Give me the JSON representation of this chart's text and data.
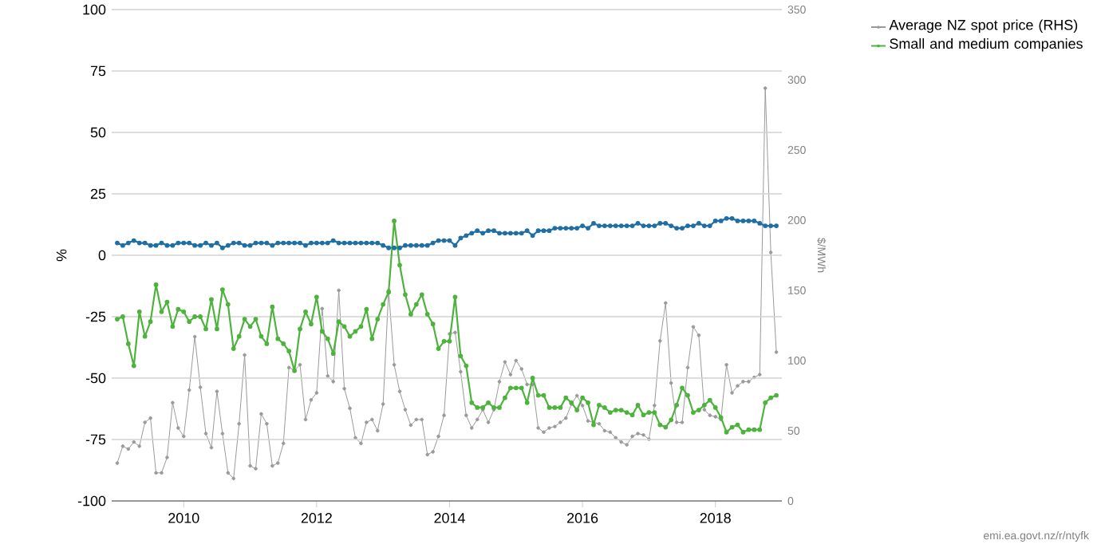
{
  "chart_data": {
    "type": "line",
    "ylabel": "%",
    "y2label": "$/MWh",
    "annotations": [
      "emi.ea.govt.nz/r/ntyfk"
    ],
    "x": [
      "2009-01",
      "2009-02",
      "2009-03",
      "2009-04",
      "2009-05",
      "2009-06",
      "2009-07",
      "2009-08",
      "2009-09",
      "2009-10",
      "2009-11",
      "2009-12",
      "2010-01",
      "2010-02",
      "2010-03",
      "2010-04",
      "2010-05",
      "2010-06",
      "2010-07",
      "2010-08",
      "2010-09",
      "2010-10",
      "2010-11",
      "2010-12",
      "2011-01",
      "2011-02",
      "2011-03",
      "2011-04",
      "2011-05",
      "2011-06",
      "2011-07",
      "2011-08",
      "2011-09",
      "2011-10",
      "2011-11",
      "2011-12",
      "2012-01",
      "2012-02",
      "2012-03",
      "2012-04",
      "2012-05",
      "2012-06",
      "2012-07",
      "2012-08",
      "2012-09",
      "2012-10",
      "2012-11",
      "2012-12",
      "2013-01",
      "2013-02",
      "2013-03",
      "2013-04",
      "2013-05",
      "2013-06",
      "2013-07",
      "2013-08",
      "2013-09",
      "2013-10",
      "2013-11",
      "2013-12",
      "2014-01",
      "2014-02",
      "2014-03",
      "2014-04",
      "2014-05",
      "2014-06",
      "2014-07",
      "2014-08",
      "2014-09",
      "2014-10",
      "2014-11",
      "2014-12",
      "2015-01",
      "2015-02",
      "2015-03",
      "2015-04",
      "2015-05",
      "2015-06",
      "2015-07",
      "2015-08",
      "2015-09",
      "2015-10",
      "2015-11",
      "2015-12",
      "2016-01",
      "2016-02",
      "2016-03",
      "2016-04",
      "2016-05",
      "2016-06",
      "2016-07",
      "2016-08",
      "2016-09",
      "2016-10",
      "2016-11",
      "2016-12",
      "2017-01",
      "2017-02",
      "2017-03",
      "2017-04",
      "2017-05",
      "2017-06",
      "2017-07",
      "2017-08",
      "2017-09",
      "2017-10",
      "2017-11",
      "2017-12",
      "2018-01",
      "2018-02",
      "2018-03",
      "2018-04",
      "2018-05",
      "2018-06",
      "2018-07",
      "2018-08",
      "2018-09",
      "2018-10",
      "2018-11",
      "2018-12"
    ],
    "series": [
      {
        "name": "Average NZ spot price (RHS)",
        "axis": "y2",
        "color": "#9a9a9a",
        "values": [
          27,
          39,
          37,
          42,
          39,
          56,
          59,
          20,
          20,
          31,
          70,
          52,
          46,
          79,
          117,
          81,
          48,
          38,
          78,
          48,
          20,
          16,
          55,
          104,
          25,
          23,
          62,
          55,
          25,
          27,
          41,
          95,
          93,
          97,
          58,
          72,
          77,
          137,
          89,
          85,
          150,
          80,
          66,
          45,
          41,
          56,
          58,
          50,
          69,
          150,
          97,
          78,
          65,
          54,
          58,
          58,
          33,
          35,
          46,
          61,
          119,
          120,
          92,
          61,
          52,
          58,
          65,
          56,
          65,
          85,
          99,
          90,
          100,
          94,
          83,
          83,
          52,
          49,
          52,
          53,
          56,
          59,
          69,
          75,
          68,
          57,
          56,
          55,
          50,
          49,
          45,
          42,
          40,
          46,
          48,
          47,
          44,
          68,
          114,
          141,
          84,
          56,
          56,
          95,
          124,
          118,
          65,
          61,
          60,
          58,
          97,
          77,
          82,
          85,
          85,
          88,
          90,
          294,
          177,
          106
        ]
      },
      {
        "color": "#1f6fa5",
        "values": [
          5,
          4,
          5,
          6,
          5,
          5,
          4,
          4,
          5,
          4,
          4,
          5,
          5,
          5,
          4,
          4,
          5,
          4,
          5,
          3,
          4,
          5,
          5,
          4,
          4,
          5,
          5,
          5,
          4,
          5,
          5,
          5,
          5,
          5,
          4,
          5,
          5,
          5,
          5,
          6,
          5,
          5,
          5,
          5,
          5,
          5,
          5,
          5,
          4,
          3,
          3,
          3,
          4,
          4,
          4,
          4,
          4,
          5,
          6,
          6,
          6,
          4,
          7,
          8,
          9,
          10,
          9,
          10,
          10,
          9,
          9,
          9,
          9,
          9,
          10,
          8,
          10,
          10,
          10,
          11,
          11,
          11,
          11,
          11,
          12,
          11,
          13,
          12,
          12,
          12,
          12,
          12,
          12,
          12,
          13,
          12,
          12,
          12,
          13,
          13,
          12,
          11,
          11,
          12,
          12,
          13,
          12,
          12,
          14,
          14,
          15,
          15,
          14,
          14,
          14,
          14,
          13,
          12,
          12,
          12
        ]
      },
      {
        "name": "Small and medium companies",
        "color": "#4db33d",
        "values": [
          -26,
          -25,
          -36,
          -45,
          -23,
          -33,
          -27,
          -12,
          -23,
          -19,
          -29,
          -22,
          -23,
          -27,
          -25,
          -25,
          -30,
          -18,
          -30,
          -14,
          -20,
          -38,
          -33,
          -26,
          -29,
          -26,
          -33,
          -36,
          -21,
          -34,
          -36,
          -39,
          -47,
          -30,
          -23,
          -28,
          -17,
          -31,
          -34,
          -40,
          -27,
          -29,
          -33,
          -31,
          -29,
          -22,
          -34,
          -26,
          -20,
          -15,
          14,
          -4,
          -16,
          -24,
          -20,
          -16,
          -24,
          -28,
          -38,
          -35,
          -35,
          -17,
          -41,
          -45,
          -60,
          -62,
          -62,
          -60,
          -62,
          -62,
          -58,
          -54,
          -54,
          -54,
          -60,
          -50,
          -57,
          -57,
          -62,
          -62,
          -62,
          -58,
          -60,
          -63,
          -58,
          -60,
          -69,
          -61,
          -62,
          -64,
          -63,
          -63,
          -64,
          -65,
          -61,
          -65,
          -64,
          -64,
          -69,
          -70,
          -67,
          -61,
          -54,
          -57,
          -64,
          -63,
          -61,
          -59,
          -62,
          -66,
          -72,
          -70,
          -69,
          -72,
          -71,
          -71,
          -71,
          -60,
          -58,
          -57
        ]
      }
    ],
    "xlim": [
      "2008-12",
      "2019-01"
    ],
    "xticks": [
      "2010",
      "2012",
      "2014",
      "2016",
      "2018"
    ],
    "ylim": [
      -100,
      100
    ],
    "yticks": [
      -100,
      -75,
      -50,
      -25,
      0,
      25,
      50,
      75,
      100
    ],
    "y2lim": [
      0,
      350
    ],
    "y2ticks": [
      0,
      50,
      100,
      150,
      200,
      250,
      300,
      350
    ],
    "grid": "y",
    "legend": "right",
    "marker": "circle",
    "line_style": "solid"
  }
}
